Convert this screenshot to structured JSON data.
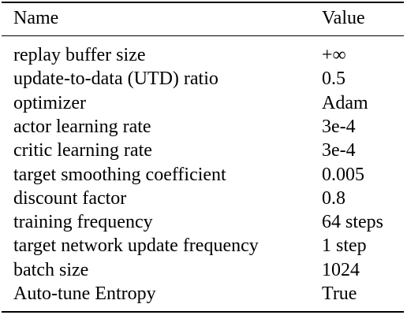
{
  "table": {
    "columns": [
      "Name",
      "Value"
    ],
    "rows": [
      {
        "name": "replay buffer size",
        "value": "+∞"
      },
      {
        "name": "update-to-data (UTD) ratio",
        "value": "0.5"
      },
      {
        "name": "optimizer",
        "value": "Adam"
      },
      {
        "name": "actor learning rate",
        "value": "3e-4"
      },
      {
        "name": "critic learning rate",
        "value": "3e-4"
      },
      {
        "name": "target smoothing coefficient",
        "value": "0.005"
      },
      {
        "name": "discount factor",
        "value": "0.8"
      },
      {
        "name": "training frequency",
        "value": "64 steps"
      },
      {
        "name": "target network update frequency",
        "value": "1 step"
      },
      {
        "name": "batch size",
        "value": "1024"
      },
      {
        "name": "Auto-tune Entropy",
        "value": "True"
      }
    ]
  }
}
